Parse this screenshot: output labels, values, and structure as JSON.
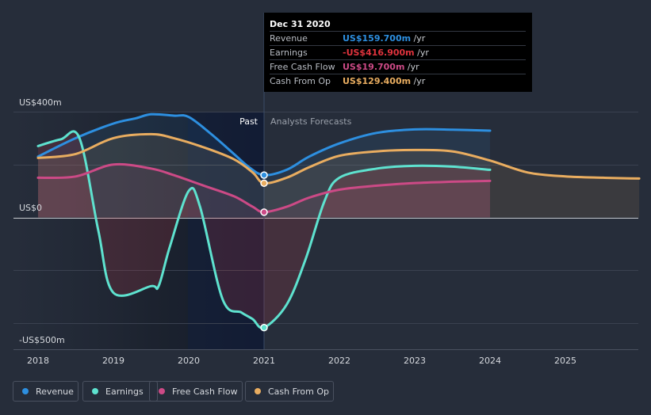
{
  "chart_data": {
    "type": "line",
    "x_labels": [
      "2018",
      "2019",
      "2020",
      "2021",
      "2022",
      "2023",
      "2024",
      "2025"
    ],
    "y_labels": {
      "top": "US$400m",
      "zero": "US$0",
      "bottom": "-US$500m"
    },
    "ylim": [
      -500,
      400
    ],
    "section_labels": {
      "past": "Past",
      "forecast": "Analysts Forecasts"
    },
    "series": [
      {
        "name": "Revenue",
        "color": "#2d8fe0",
        "points": [
          [
            2018.0,
            230
          ],
          [
            2018.5,
            300
          ],
          [
            2019.0,
            355
          ],
          [
            2019.3,
            375
          ],
          [
            2019.5,
            390
          ],
          [
            2019.8,
            385
          ],
          [
            2020.0,
            380
          ],
          [
            2020.3,
            315
          ],
          [
            2020.6,
            240
          ],
          [
            2020.8,
            190
          ],
          [
            2021.0,
            160
          ],
          [
            2021.3,
            180
          ],
          [
            2021.6,
            230
          ],
          [
            2022.0,
            280
          ],
          [
            2022.5,
            320
          ],
          [
            2023.0,
            333
          ],
          [
            2023.5,
            332
          ],
          [
            2024.0,
            328
          ]
        ]
      },
      {
        "name": "Earnings",
        "color": "#5ee2cf",
        "points": [
          [
            2018.0,
            270
          ],
          [
            2018.3,
            295
          ],
          [
            2018.55,
            300
          ],
          [
            2018.8,
            -50
          ],
          [
            2019.0,
            -285
          ],
          [
            2019.5,
            -260
          ],
          [
            2019.6,
            -260
          ],
          [
            2019.75,
            -110
          ],
          [
            2020.0,
            100
          ],
          [
            2020.15,
            40
          ],
          [
            2020.45,
            -310
          ],
          [
            2020.7,
            -360
          ],
          [
            2020.85,
            -385
          ],
          [
            2021.0,
            -416.9
          ],
          [
            2021.3,
            -330
          ],
          [
            2021.55,
            -160
          ],
          [
            2021.8,
            60
          ],
          [
            2022.0,
            150
          ],
          [
            2022.5,
            185
          ],
          [
            2023.0,
            195
          ],
          [
            2023.5,
            192
          ],
          [
            2024.0,
            180
          ]
        ]
      },
      {
        "name": "Free Cash Flow",
        "color": "#cc4a86",
        "points": [
          [
            2018.0,
            150
          ],
          [
            2018.5,
            155
          ],
          [
            2019.0,
            200
          ],
          [
            2019.5,
            185
          ],
          [
            2019.8,
            160
          ],
          [
            2020.2,
            120
          ],
          [
            2020.6,
            80
          ],
          [
            2020.85,
            40
          ],
          [
            2021.0,
            19.7
          ],
          [
            2021.3,
            40
          ],
          [
            2021.6,
            75
          ],
          [
            2022.0,
            105
          ],
          [
            2022.5,
            120
          ],
          [
            2023.0,
            130
          ],
          [
            2023.5,
            135
          ],
          [
            2024.0,
            138
          ]
        ]
      },
      {
        "name": "Cash From Op",
        "color": "#e9ad60",
        "points": [
          [
            2018.0,
            225
          ],
          [
            2018.5,
            240
          ],
          [
            2019.0,
            300
          ],
          [
            2019.5,
            315
          ],
          [
            2019.8,
            300
          ],
          [
            2020.2,
            265
          ],
          [
            2020.6,
            220
          ],
          [
            2020.85,
            170
          ],
          [
            2021.0,
            129.4
          ],
          [
            2021.3,
            150
          ],
          [
            2021.6,
            190
          ],
          [
            2022.0,
            233
          ],
          [
            2022.5,
            250
          ],
          [
            2023.0,
            255
          ],
          [
            2023.5,
            250
          ],
          [
            2024.0,
            215
          ],
          [
            2024.5,
            170
          ],
          [
            2025.0,
            155
          ],
          [
            2025.5,
            150
          ],
          [
            2025.98,
            147
          ]
        ]
      }
    ]
  },
  "tooltip": {
    "date": "Dec 31 2020",
    "rows": [
      {
        "label": "Revenue",
        "value": "US$159.700m",
        "unit": "/yr",
        "color": "#2d8fe0"
      },
      {
        "label": "Earnings",
        "value": "-US$416.900m",
        "unit": "/yr",
        "color": "#e0333d"
      },
      {
        "label": "Free Cash Flow",
        "value": "US$19.700m",
        "unit": "/yr",
        "color": "#cc4a86"
      },
      {
        "label": "Cash From Op",
        "value": "US$129.400m",
        "unit": "/yr",
        "color": "#e9ad60"
      }
    ]
  },
  "legend": [
    {
      "label": "Revenue",
      "color": "#2d8fe0"
    },
    {
      "label": "Earnings",
      "color": "#5ee2cf"
    },
    {
      "label": "Free Cash Flow",
      "color": "#cc4a86"
    },
    {
      "label": "Cash From Op",
      "color": "#e9ad60"
    }
  ]
}
